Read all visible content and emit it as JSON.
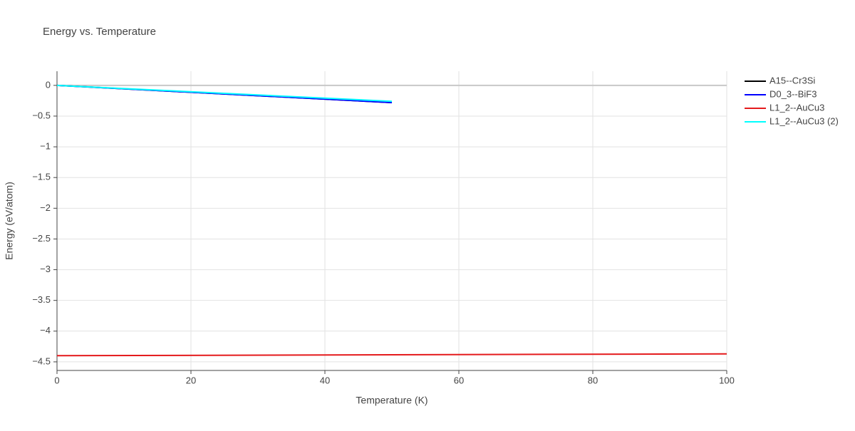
{
  "chart_data": {
    "type": "line",
    "title": "Energy vs. Temperature",
    "x_label": "Temperature (K)",
    "y_label": "Energy (eV/atom)",
    "xlim": [
      0,
      100
    ],
    "xticks": [
      0,
      20,
      40,
      60,
      80,
      100
    ],
    "ylim": [
      -4.64,
      0.23
    ],
    "yticks": [
      0,
      {
        "value": -0.5,
        "label": "−0.5"
      },
      {
        "value": -1,
        "label": "−1"
      },
      {
        "value": -1.5,
        "label": "−1.5"
      },
      {
        "value": -2,
        "label": "−2"
      },
      {
        "value": -2.5,
        "label": "−2.5"
      },
      {
        "value": -3,
        "label": "−3"
      },
      {
        "value": -3.5,
        "label": "−3.5"
      },
      {
        "value": -4,
        "label": "−4"
      },
      {
        "value": -4.5,
        "label": "−4.5"
      }
    ],
    "grid": true,
    "legend": "right",
    "series": [
      {
        "name": "A15--Cr3Si",
        "color": "#000000",
        "x": [
          0,
          50
        ],
        "values": [
          0,
          -0.28
        ]
      },
      {
        "name": "D0_3--BiF3",
        "color": "#0000ff",
        "x": [
          0,
          50
        ],
        "values": [
          0,
          -0.28
        ]
      },
      {
        "name": "L1_2--AuCu3",
        "color": "#e41a1c",
        "x": [
          0,
          100
        ],
        "values": [
          -4.4,
          -4.37
        ]
      },
      {
        "name": "L1_2--AuCu3 (2)",
        "color": "#00ffff",
        "x": [
          0,
          50
        ],
        "values": [
          0,
          -0.26
        ]
      }
    ]
  }
}
